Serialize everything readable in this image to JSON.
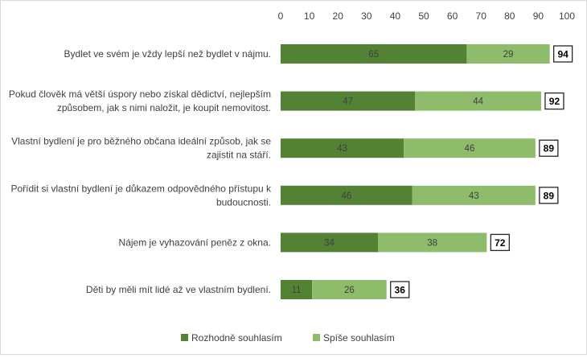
{
  "chart_data": {
    "type": "bar",
    "orientation": "horizontal",
    "stacked": true,
    "categories": [
      [
        "Bydlet ve svém je vždy lepší než bydlet v nájmu."
      ],
      [
        "Pokud člověk má větší úspory nebo získal dědictví, nejlepším",
        "způsobem, jak s nimi naložit, je koupit nemovitost."
      ],
      [
        "Vlastní bydlení je pro běžného občana ideální způsob, jak se",
        "zajistit na stáří."
      ],
      [
        "Pořídit si vlastní bydlení je důkazem odpovědného přístupu k",
        "budoucnosti."
      ],
      [
        "Nájem je vyhazování peněz z okna."
      ],
      [
        "Děti by měli mít lidé až ve vlastním bydlení."
      ]
    ],
    "series": [
      {
        "name": "Rozhodně souhlasím",
        "values": [
          65,
          47,
          43,
          46,
          34,
          11
        ],
        "color": "#548235"
      },
      {
        "name": "Spíše souhlasím",
        "values": [
          29,
          44,
          46,
          43,
          38,
          26
        ],
        "color": "#8fbc6b"
      }
    ],
    "totals": [
      "94",
      "92",
      "89",
      "89",
      "72",
      "36"
    ],
    "xlim": [
      0,
      100
    ],
    "xticks": [
      "0",
      "10",
      "20",
      "30",
      "40",
      "50",
      "60",
      "70",
      "80",
      "90",
      "100"
    ],
    "x_axis_position": "top",
    "grid": false,
    "legend_position": "bottom"
  }
}
